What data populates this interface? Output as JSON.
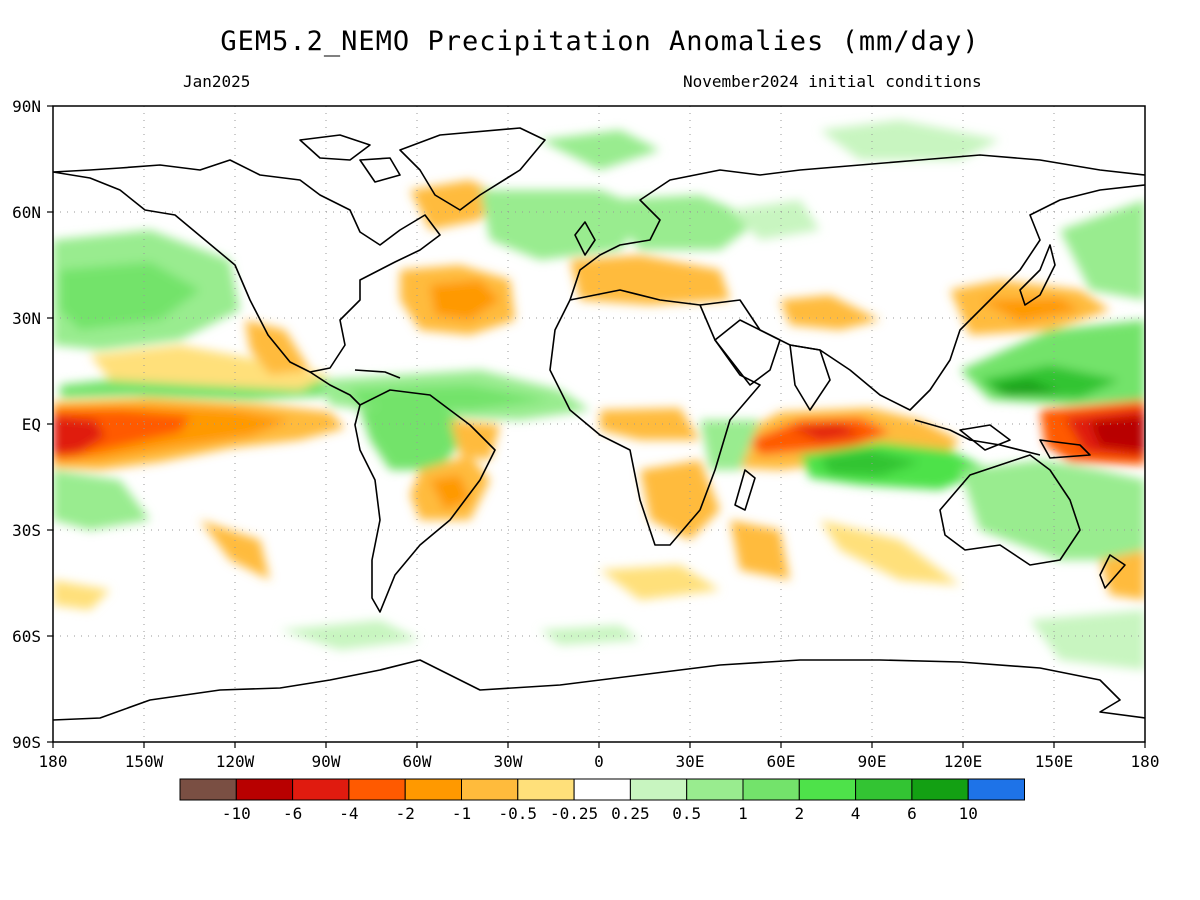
{
  "title": "GEM5.2_NEMO Precipitation Anomalies (mm/day)",
  "subtitle_left": "Jan2025",
  "subtitle_right": "November2024 initial conditions",
  "lat_labels": [
    "90N",
    "60N",
    "30N",
    "EQ",
    "30S",
    "60S",
    "90S"
  ],
  "lon_labels": [
    "180",
    "150W",
    "120W",
    "90W",
    "60W",
    "30W",
    "0",
    "30E",
    "60E",
    "90E",
    "120E",
    "150E",
    "180"
  ],
  "colorbar": {
    "colors": [
      "#7a4f43",
      "#b80000",
      "#e01b0f",
      "#ff5a00",
      "#ff9900",
      "#ffbb3c",
      "#ffe07a",
      "#ffffff",
      "#c8f5c0",
      "#99ec8f",
      "#73e36b",
      "#4ee24a",
      "#33c433",
      "#13a013",
      "#1e73e8"
    ],
    "labels": [
      "-10",
      "-6",
      "-4",
      "-2",
      "-1",
      "-0.5",
      "-0.25",
      "0.25",
      "0.5",
      "1",
      "2",
      "4",
      "6",
      "10"
    ]
  }
}
